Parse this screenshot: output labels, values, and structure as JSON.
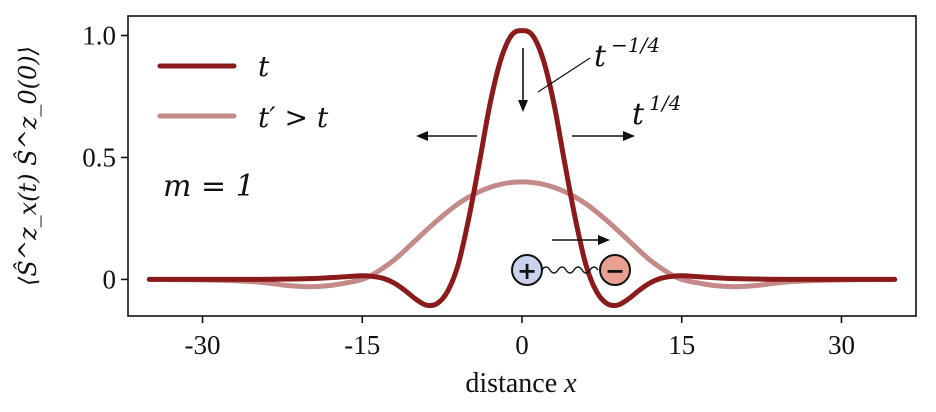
{
  "chart_data": {
    "type": "line",
    "xlabel": "distance",
    "xlabel_var": "x",
    "ylabel": "⟨Ŝ^z_x(t) Ŝ^z_0(0)⟩",
    "xlim": [
      -37,
      37
    ],
    "ylim": [
      -0.15,
      1.08
    ],
    "xticks": [
      -30,
      -15,
      0,
      15,
      30
    ],
    "xtick_labels": [
      "-30",
      "-15",
      "0",
      "15",
      "30"
    ],
    "yticks": [
      0,
      0.5,
      1.0
    ],
    "ytick_labels": [
      "0",
      "0.5",
      "1.0"
    ],
    "grid": false,
    "legend_position": "top-left",
    "series": [
      {
        "name": "t",
        "color": "#8b1a1a",
        "x": [
          -35,
          -30,
          -25,
          -20,
          -17,
          -15,
          -14,
          -13,
          -12,
          -11,
          -10,
          -9,
          -8,
          -7,
          -6,
          -5,
          -4,
          -3,
          -2,
          -1,
          0,
          1,
          2,
          3,
          4,
          5,
          6,
          7,
          8,
          9,
          10,
          11,
          12,
          13,
          14,
          15,
          17,
          20,
          25,
          30,
          35
        ],
        "y": [
          0,
          0,
          0,
          0.003,
          0.01,
          0.015,
          0.012,
          0.004,
          -0.015,
          -0.045,
          -0.08,
          -0.105,
          -0.1,
          -0.05,
          0.06,
          0.25,
          0.48,
          0.72,
          0.9,
          1.0,
          1.02,
          1.0,
          0.9,
          0.72,
          0.48,
          0.25,
          0.06,
          -0.05,
          -0.1,
          -0.105,
          -0.08,
          -0.045,
          -0.015,
          0.004,
          0.012,
          0.015,
          0.01,
          0.003,
          0,
          0,
          0
        ]
      },
      {
        "name": "t′ > t",
        "color": "#c48a8a",
        "x": [
          -35,
          -30,
          -25,
          -22,
          -20,
          -18,
          -16,
          -15,
          -14,
          -12,
          -10,
          -8,
          -6,
          -4,
          -2,
          0,
          2,
          4,
          6,
          8,
          10,
          12,
          14,
          15,
          16,
          18,
          20,
          22,
          25,
          30,
          35
        ],
        "y": [
          0,
          -0.002,
          -0.01,
          -0.025,
          -0.03,
          -0.025,
          -0.01,
          0.0,
          0.02,
          0.08,
          0.16,
          0.24,
          0.31,
          0.36,
          0.39,
          0.4,
          0.39,
          0.36,
          0.31,
          0.24,
          0.16,
          0.08,
          0.02,
          0.0,
          -0.01,
          -0.025,
          -0.03,
          -0.025,
          -0.01,
          -0.002,
          0
        ]
      }
    ],
    "annotations": [
      {
        "id": "peak",
        "text_base": "t",
        "text_exp": "−1/4"
      },
      {
        "id": "spread",
        "text_base": "t",
        "text_exp": "1/4"
      },
      {
        "id": "m",
        "text": "m = 1"
      }
    ],
    "inset_labels": {
      "plus": "+",
      "minus": "−"
    }
  }
}
